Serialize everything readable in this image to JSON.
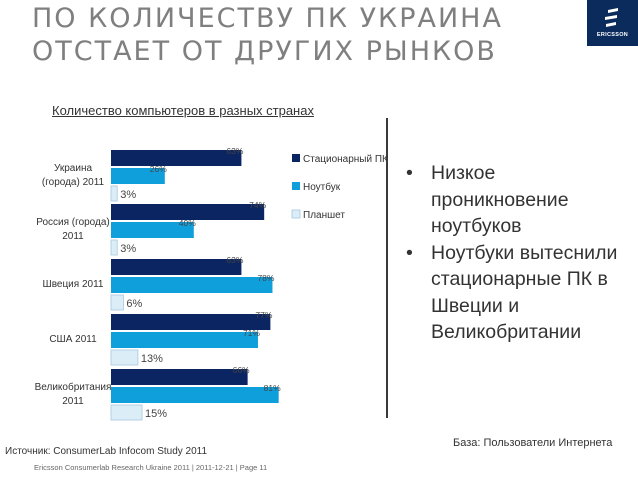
{
  "title": "ПО КОЛИЧЕСТВУ ПК УКРАИНА ОТСТАЕТ ОТ ДРУГИХ РЫНКОВ",
  "logo": {
    "text": "ERICSSON"
  },
  "chart_data": {
    "type": "bar",
    "orientation": "horizontal",
    "title": "Количество компьютеров в разных странах",
    "categories": [
      [
        "Украина",
        "(города) 2011"
      ],
      [
        "Россия (города)",
        "2011"
      ],
      [
        "Швеция 2011"
      ],
      [
        "США 2011"
      ],
      [
        "Великобритания",
        "2011"
      ]
    ],
    "series": [
      {
        "name": "Стационарный ПК",
        "color": "#0b2462",
        "values": [
          63,
          74,
          63,
          77,
          66
        ],
        "labels": [
          "63%",
          "74%",
          "63%",
          "77%",
          "66%"
        ]
      },
      {
        "name": "Ноутбук",
        "color": "#0fa0dc",
        "values": [
          26,
          40,
          78,
          71,
          81
        ],
        "labels": [
          "26%",
          "40%",
          "78%",
          "71%",
          "81%"
        ]
      },
      {
        "name": "Планшет",
        "color": "#dbeef8",
        "values": [
          3,
          3,
          6,
          13,
          15
        ],
        "labels": [
          "3%",
          "3%",
          "6%",
          "13%",
          "15%"
        ]
      }
    ],
    "xlim": [
      0,
      100
    ],
    "legend": "right",
    "grid": false
  },
  "bullets": [
    "Низкое проникновение ноутбуков",
    "Ноутбуки вытеснили стационарные ПК в Швеции и Великобритании"
  ],
  "base_note": "База: Пользователи Интернета",
  "source": "Источник: ConsumerLab Infocom Study 2011",
  "footer": "Ericsson Consumerlab Research Ukraine 2011  |  2011-12-21  |  Page 11"
}
